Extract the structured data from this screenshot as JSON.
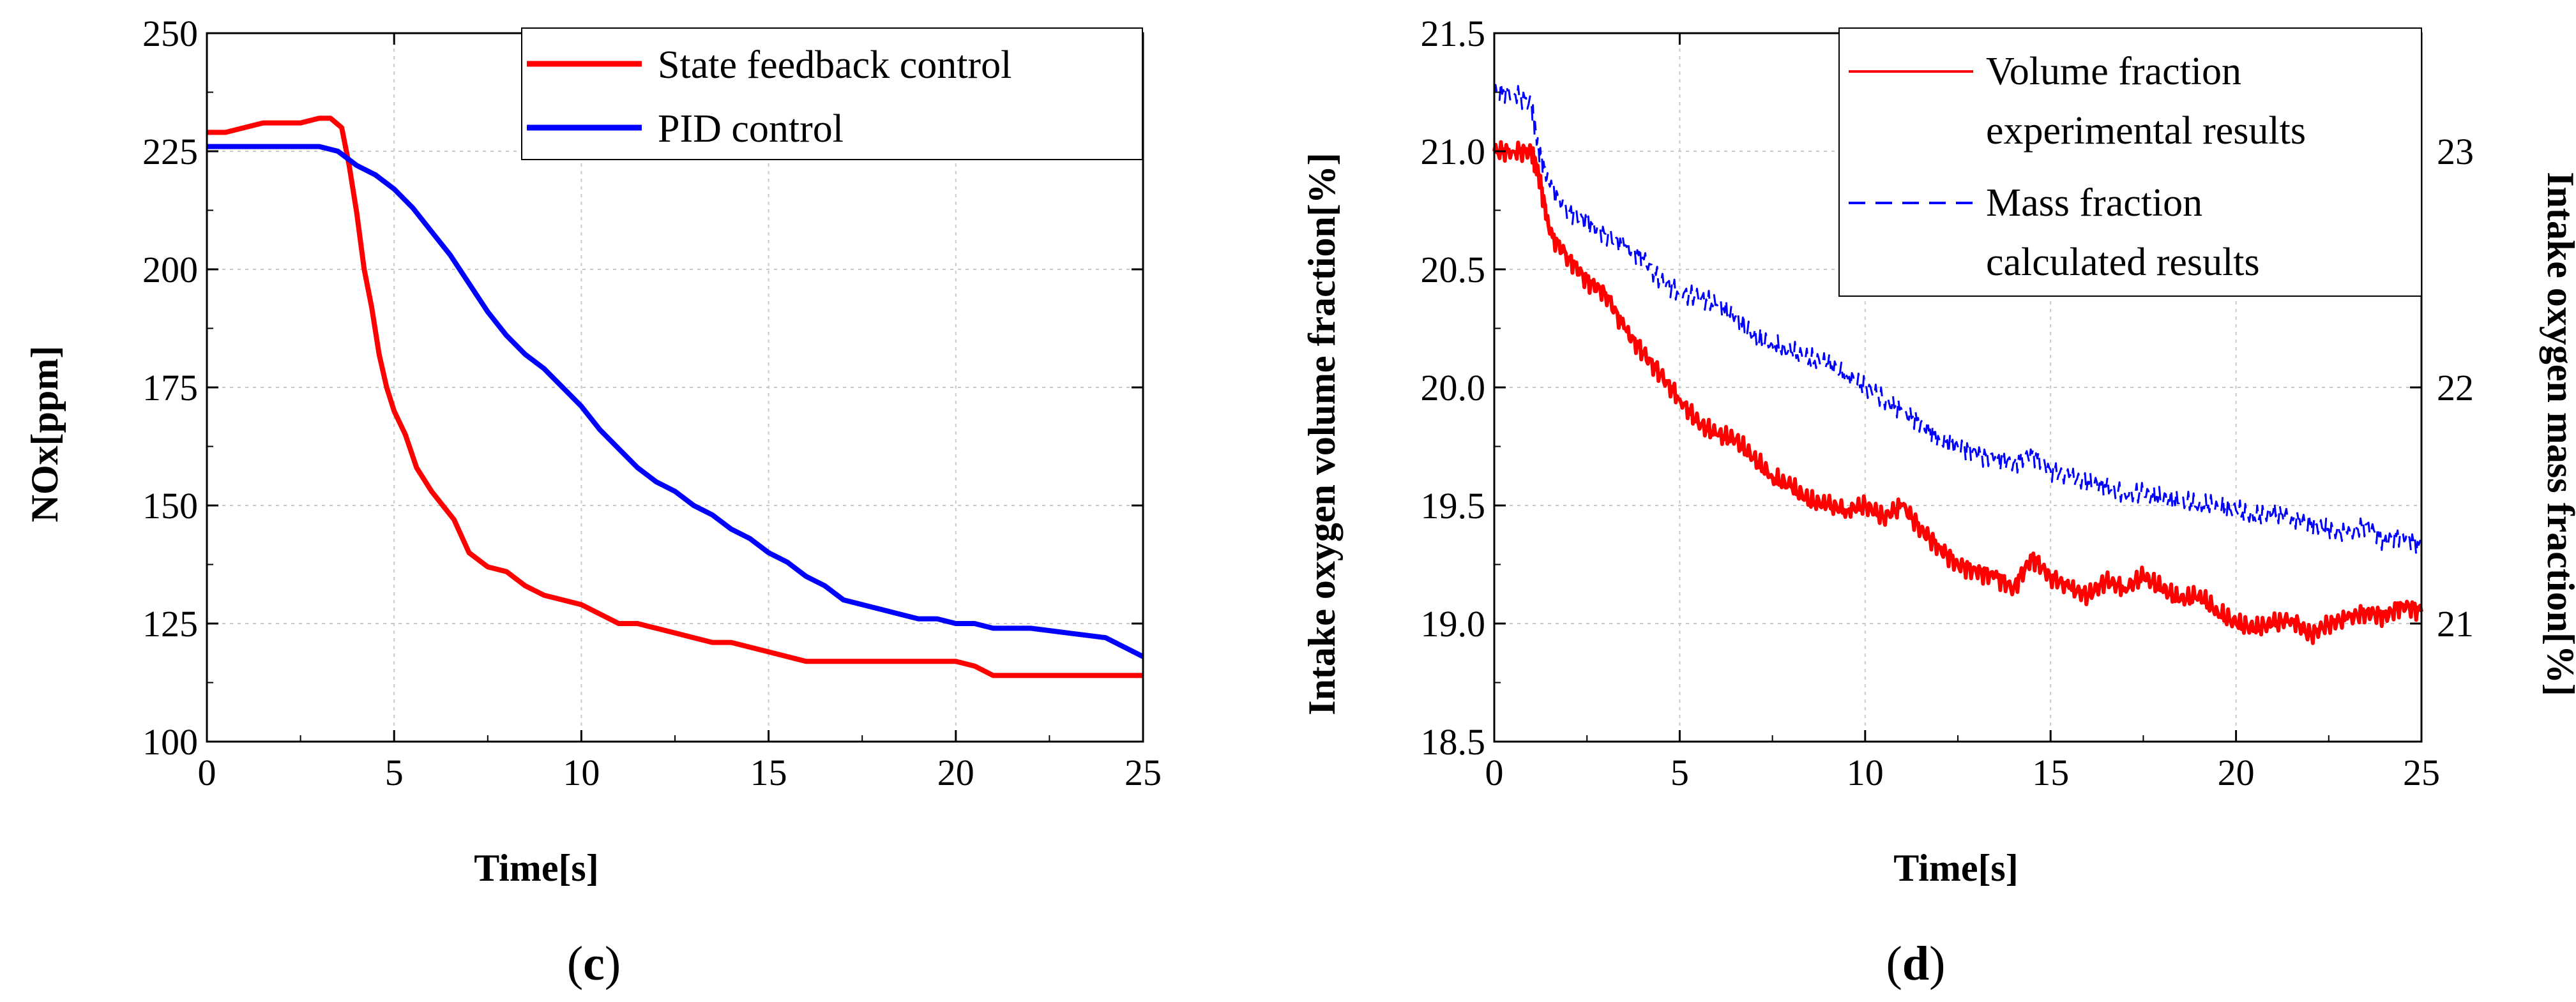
{
  "colors": {
    "red": "#ff0000",
    "blue": "#0000ff",
    "grid": "#c8c8c8",
    "axis": "#000000"
  },
  "panels": {
    "c": {
      "paren_open": "(",
      "letter": "c",
      "paren_close": ")"
    },
    "d": {
      "paren_open": "(",
      "letter": "d",
      "paren_close": ")"
    }
  },
  "chart_data": [
    {
      "id": "c",
      "type": "line",
      "title": "",
      "xlabel": "Time[s]",
      "ylabel": "NOx[ppm]",
      "xlim": [
        0,
        25
      ],
      "ylim": [
        100,
        250
      ],
      "xticks": [
        "0",
        "5",
        "10",
        "15",
        "20",
        "25"
      ],
      "yticks": [
        "100",
        "125",
        "150",
        "175",
        "200",
        "225",
        "250"
      ],
      "grid": true,
      "legend_position": "top-right",
      "series": [
        {
          "name": "State feedback control",
          "color": "#ff0000",
          "style": "solid",
          "x": [
            0,
            0.5,
            1,
            1.5,
            2,
            2.5,
            3,
            3.3,
            3.6,
            3.8,
            4,
            4.2,
            4.4,
            4.6,
            4.8,
            5,
            5.3,
            5.6,
            6,
            6.3,
            6.6,
            7,
            7.5,
            8,
            8.5,
            9,
            9.5,
            10,
            10.5,
            11,
            11.5,
            12,
            12.5,
            13,
            13.5,
            14,
            15,
            16,
            17,
            18,
            19,
            20,
            20.5,
            21,
            22,
            23,
            24,
            25
          ],
          "y": [
            229,
            229,
            230,
            231,
            231,
            231,
            232,
            232,
            230,
            222,
            212,
            200,
            192,
            182,
            175,
            170,
            165,
            158,
            153,
            150,
            147,
            140,
            137,
            136,
            133,
            131,
            130,
            129,
            127,
            125,
            125,
            124,
            123,
            122,
            121,
            121,
            119,
            117,
            117,
            117,
            117,
            117,
            116,
            114,
            114,
            114,
            114,
            114
          ]
        },
        {
          "name": "PID control",
          "color": "#0000ff",
          "style": "solid",
          "x": [
            0,
            1,
            2,
            3,
            3.5,
            4,
            4.5,
            5,
            5.5,
            6,
            6.5,
            7,
            7.5,
            8,
            8.5,
            9,
            9.5,
            10,
            10.5,
            11,
            11.5,
            12,
            12.5,
            13,
            13.5,
            14,
            14.5,
            15,
            15.5,
            16,
            16.5,
            17,
            17.5,
            18,
            18.5,
            19,
            19.5,
            20,
            20.5,
            21,
            22,
            23,
            24,
            25
          ],
          "y": [
            226,
            226,
            226,
            226,
            225,
            222,
            220,
            217,
            213,
            208,
            203,
            197,
            191,
            186,
            182,
            179,
            175,
            171,
            166,
            162,
            158,
            155,
            153,
            150,
            148,
            145,
            143,
            140,
            138,
            135,
            133,
            130,
            129,
            128,
            127,
            126,
            126,
            125,
            125,
            124,
            124,
            123,
            122,
            118
          ]
        }
      ]
    },
    {
      "id": "d",
      "type": "line",
      "title": "",
      "xlabel": "Time[s]",
      "ylabel": "Intake oxygen volume fraction[%]",
      "y2label": "Intake oxygen mass fraction[%]",
      "xlim": [
        0,
        25
      ],
      "ylim": [
        18.5,
        21.5
      ],
      "y2lim": [
        20.5,
        23.5
      ],
      "xticks": [
        "0",
        "5",
        "10",
        "15",
        "20",
        "25"
      ],
      "yticks": [
        "18.5",
        "19.0",
        "19.5",
        "20.0",
        "20.5",
        "21.0",
        "21.5"
      ],
      "y2ticks": [
        "21",
        "22",
        "23"
      ],
      "grid": true,
      "legend_position": "top-right",
      "series": [
        {
          "name": "Volume fraction experimental results",
          "legend_lines": [
            "Volume fraction",
            "experimental results"
          ],
          "color": "#ff0000",
          "style": "solid",
          "axis": "left",
          "x": [
            0,
            0.5,
            1,
            1.2,
            1.5,
            2,
            2.5,
            3,
            3.5,
            4,
            4.5,
            5,
            5.5,
            6,
            6.5,
            7,
            7.5,
            8,
            8.5,
            9,
            9.5,
            10,
            10.5,
            11,
            11.5,
            12,
            12.5,
            13,
            13.5,
            14,
            14.5,
            15,
            15.5,
            16,
            16.5,
            17,
            17.5,
            18,
            18.5,
            19,
            19.5,
            20,
            20.5,
            21,
            21.5,
            22,
            22.5,
            23,
            23.5,
            24,
            24.5,
            25
          ],
          "y": [
            21.0,
            21.0,
            21.0,
            20.9,
            20.65,
            20.55,
            20.45,
            20.4,
            20.25,
            20.15,
            20.05,
            19.95,
            19.85,
            19.8,
            19.78,
            19.7,
            19.62,
            19.58,
            19.52,
            19.5,
            19.48,
            19.5,
            19.45,
            19.5,
            19.4,
            19.32,
            19.25,
            19.22,
            19.2,
            19.15,
            19.28,
            19.2,
            19.15,
            19.12,
            19.18,
            19.15,
            19.2,
            19.15,
            19.1,
            19.12,
            19.05,
            19.0,
            18.98,
            19.0,
            19.02,
            18.95,
            19.0,
            19.02,
            19.05,
            19.03,
            19.08,
            19.05
          ]
        },
        {
          "name": "Mass fraction calculated results",
          "legend_lines": [
            "Mass fraction",
            "calculated results"
          ],
          "color": "#0000ff",
          "style": "dashed",
          "axis": "right",
          "x": [
            0,
            0.5,
            1,
            1.2,
            1.5,
            2,
            2.5,
            3,
            3.5,
            4,
            4.5,
            5,
            5.5,
            6,
            6.5,
            7,
            7.5,
            8,
            8.5,
            9,
            9.5,
            10,
            10.5,
            11,
            11.5,
            12,
            12.5,
            13,
            13.5,
            14,
            14.5,
            15,
            15.5,
            16,
            16.5,
            17,
            17.5,
            18,
            18.5,
            19,
            19.5,
            20,
            20.5,
            21,
            21.5,
            22,
            22.5,
            23,
            23.5,
            24,
            24.5,
            25
          ],
          "y": [
            23.25,
            23.25,
            23.2,
            23.0,
            22.85,
            22.75,
            22.7,
            22.65,
            22.6,
            22.55,
            22.45,
            22.4,
            22.38,
            22.35,
            22.3,
            22.22,
            22.18,
            22.15,
            22.12,
            22.1,
            22.05,
            22.0,
            21.95,
            21.9,
            21.85,
            21.78,
            21.75,
            21.72,
            21.7,
            21.68,
            21.72,
            21.65,
            21.62,
            21.6,
            21.58,
            21.55,
            21.55,
            21.53,
            21.52,
            21.5,
            21.5,
            21.48,
            21.45,
            21.47,
            21.45,
            21.42,
            21.4,
            21.38,
            21.42,
            21.35,
            21.38,
            21.32
          ]
        }
      ]
    }
  ]
}
